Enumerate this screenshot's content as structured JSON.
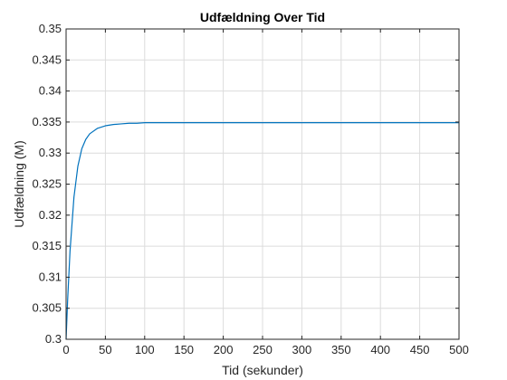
{
  "chart_data": {
    "type": "line",
    "title": "Udfældning Over Tid",
    "xlabel": "Tid (sekunder)",
    "ylabel": "Udfældning (M)",
    "xlim": [
      0,
      500
    ],
    "ylim": [
      0.3,
      0.35
    ],
    "xticks": [
      0,
      50,
      100,
      150,
      200,
      250,
      300,
      350,
      400,
      450,
      500
    ],
    "yticks": [
      0.3,
      0.305,
      0.31,
      0.315,
      0.32,
      0.325,
      0.33,
      0.335,
      0.34,
      0.345,
      0.35
    ],
    "xtick_labels": [
      "0",
      "50",
      "100",
      "150",
      "200",
      "250",
      "300",
      "350",
      "400",
      "450",
      "500"
    ],
    "ytick_labels": [
      "0.3",
      "0.305",
      "0.31",
      "0.315",
      "0.32",
      "0.325",
      "0.33",
      "0.335",
      "0.34",
      "0.345",
      "0.35"
    ],
    "grid": true,
    "line_color": "#0072BD",
    "series": [
      {
        "x": [
          0,
          2,
          5,
          10,
          15,
          20,
          25,
          30,
          40,
          50,
          60,
          70,
          80,
          90,
          100,
          120,
          140,
          160,
          180,
          200,
          250,
          300,
          350,
          400,
          450,
          500
        ],
        "values": [
          0.3,
          0.3064,
          0.3142,
          0.3229,
          0.3279,
          0.3307,
          0.3322,
          0.3331,
          0.334,
          0.3344,
          0.3346,
          0.3347,
          0.3348,
          0.3348,
          0.3349,
          0.3349,
          0.3349,
          0.3349,
          0.3349,
          0.3349,
          0.3349,
          0.3349,
          0.3349,
          0.3349,
          0.3349,
          0.3349
        ]
      }
    ]
  }
}
